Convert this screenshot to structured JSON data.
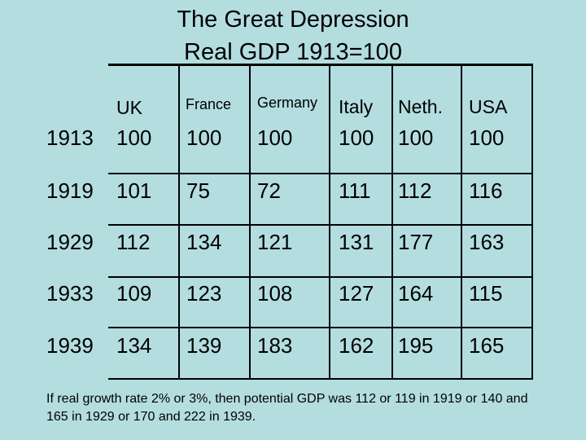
{
  "title": {
    "line1": "The Great Depression",
    "line2": "Real GDP 1913=100"
  },
  "table": {
    "headers": [
      "UK",
      "France",
      "Germany",
      "Italy",
      "Neth.",
      "USA"
    ],
    "rows": [
      {
        "year": "1913",
        "values": [
          "100",
          "100",
          "100",
          "100",
          "100",
          "100"
        ]
      },
      {
        "year": "1919",
        "values": [
          "101",
          "75",
          "72",
          "111",
          "112",
          "116"
        ]
      },
      {
        "year": "1929",
        "values": [
          "112",
          "134",
          "121",
          "131",
          "177",
          "163"
        ]
      },
      {
        "year": "1933",
        "values": [
          "109",
          "123",
          "108",
          "127",
          "164",
          "115"
        ]
      },
      {
        "year": "1939",
        "values": [
          "134",
          "139",
          "183",
          "162",
          "195",
          "165"
        ]
      }
    ]
  },
  "footnote": "If real growth rate 2% or 3%, then potential GDP was 112 or 119 in 1919 or 140 and 165 in 1929 or 170 and 222 in 1939."
}
